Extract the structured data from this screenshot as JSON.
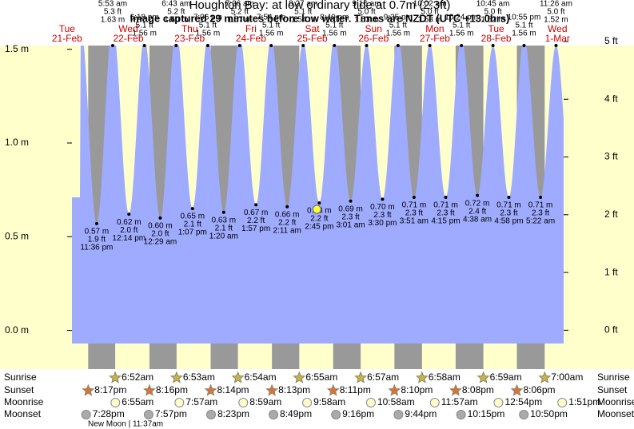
{
  "chart_data": {
    "type": "tide",
    "title": "Houghton Bay: at low  ordinary tide at 0.7m (2.3ft)",
    "subtitle": "Image captured 29 minutes before low water. Times are NZDT (UTC +13.0hrs)",
    "ylim": [
      -0.07,
      1.52
    ],
    "yticks": [
      {
        "value": 0.0,
        "label": "0.0 m"
      },
      {
        "value": 0.5,
        "label": "0.5 m"
      },
      {
        "value": 1.0,
        "label": "1.0 m"
      },
      {
        "value": 1.5,
        "label": "1.5 m"
      }
    ],
    "y2lim": [
      -0.23,
      4.93
    ],
    "y2ticks": [
      {
        "value": 0,
        "label": "0 ft"
      },
      {
        "value": 1,
        "label": "1 ft"
      },
      {
        "value": 2,
        "label": "2 ft"
      },
      {
        "value": 3,
        "label": "3 ft"
      },
      {
        "value": 4,
        "label": "4 ft"
      },
      {
        "value": 5,
        "label": "5 ft"
      }
    ],
    "colors": {
      "water": "#9eabff",
      "day": "#ffffcc",
      "night": "#999999",
      "days": "#cc0000"
    },
    "days": [
      {
        "name": "Tue",
        "date": "21-Feb"
      },
      {
        "name": "Wed",
        "date": "22-Feb"
      },
      {
        "name": "Thu",
        "date": "23-Feb"
      },
      {
        "name": "Fri",
        "date": "24-Feb"
      },
      {
        "name": "Sat",
        "date": "25-Feb"
      },
      {
        "name": "Sun",
        "date": "26-Feb"
      },
      {
        "name": "Mon",
        "date": "27-Feb"
      },
      {
        "name": "Tue",
        "date": "28-Feb"
      },
      {
        "name": "Wed",
        "date": "1-Mar"
      }
    ],
    "lows": [
      {
        "time": "11:36 pm",
        "m": 0.57,
        "m_label": "0.57 m",
        "ft": 1.9,
        "ft_label": "1.9 ft"
      },
      {
        "time": "12:14 pm",
        "m": 0.62,
        "m_label": "0.62 m",
        "ft": 2.0,
        "ft_label": "2.0 ft"
      },
      {
        "time": "12:29 am",
        "m": 0.6,
        "m_label": "0.60 m",
        "ft": 2.0,
        "ft_label": "2.0 ft"
      },
      {
        "time": "1:07 pm",
        "m": 0.65,
        "m_label": "0.65 m",
        "ft": 2.1,
        "ft_label": "2.1 ft"
      },
      {
        "time": "1:20 am",
        "m": 0.63,
        "m_label": "0.63 m",
        "ft": 2.1,
        "ft_label": "2.1 ft"
      },
      {
        "time": "1:57 pm",
        "m": 0.67,
        "m_label": "0.67 m",
        "ft": 2.2,
        "ft_label": "2.2 ft"
      },
      {
        "time": "2:11 am",
        "m": 0.66,
        "m_label": "0.66 m",
        "ft": 2.2,
        "ft_label": "2.2 ft"
      },
      {
        "time": "2:45 pm",
        "m": 0.68,
        "m_label": "0.68 m",
        "ft": 2.2,
        "ft_label": "2.2 ft"
      },
      {
        "time": "3:01 am",
        "m": 0.69,
        "m_label": "0.69 m",
        "ft": 2.3,
        "ft_label": "2.3 ft"
      },
      {
        "time": "3:30 pm",
        "m": 0.7,
        "m_label": "0.70 m",
        "ft": 2.3,
        "ft_label": "2.3 ft"
      },
      {
        "time": "3:51 am",
        "m": 0.71,
        "m_label": "0.71 m",
        "ft": 2.3,
        "ft_label": "2.3 ft"
      },
      {
        "time": "4:15 pm",
        "m": 0.71,
        "m_label": "0.71 m",
        "ft": 2.3,
        "ft_label": "2.3 ft"
      },
      {
        "time": "4:38 am",
        "m": 0.72,
        "m_label": "0.72 m",
        "ft": 2.4,
        "ft_label": "2.4 ft"
      },
      {
        "time": "4:58 pm",
        "m": 0.71,
        "m_label": "0.71 m",
        "ft": 2.3,
        "ft_label": "2.3 ft"
      },
      {
        "time": "5:22 am",
        "m": 0.71,
        "m_label": "0.71 m",
        "ft": 2.3,
        "ft_label": "2.3 ft"
      }
    ],
    "highs": [
      {
        "time": "5:53 am",
        "m": 1.63,
        "m_label": "1.63 m",
        "ft": 5.3,
        "ft_label": "5.3 ft"
      },
      {
        "time": "6:18 pm",
        "m": 1.56,
        "m_label": "1.56 m",
        "ft": 5.1,
        "ft_label": "5.1 ft"
      },
      {
        "time": "6:43 am",
        "m": 1.6,
        "m_label": "1.60 m",
        "ft": 5.2,
        "ft_label": "5.2 ft"
      },
      {
        "time": "7:06 pm",
        "m": 1.56,
        "m_label": "1.56 m",
        "ft": 5.1,
        "ft_label": "5.1 ft"
      },
      {
        "time": "7:36 am",
        "m": 1.57,
        "m_label": "1.57 m",
        "ft": 5.2,
        "ft_label": "5.2 ft"
      },
      {
        "time": "7:54 pm",
        "m": 1.56,
        "m_label": "1.56 m",
        "ft": 5.1,
        "ft_label": "5.1 ft"
      },
      {
        "time": "8:27 am",
        "m": 1.54,
        "m_label": "1.54 m",
        "ft": 5.1,
        "ft_label": "5.1 ft"
      },
      {
        "time": "8:40 pm",
        "m": 1.56,
        "m_label": "1.56 m",
        "ft": 5.1,
        "ft_label": "5.1 ft"
      },
      {
        "time": "9:16 am",
        "m": 1.53,
        "m_label": "1.53 m",
        "ft": 5.0,
        "ft_label": "5.0 ft"
      },
      {
        "time": "9:35 pm",
        "m": 1.56,
        "m_label": "1.56 m",
        "ft": 5.1,
        "ft_label": "5.1 ft"
      },
      {
        "time": "10:02 am",
        "m": 1.53,
        "m_label": "1.53 m",
        "ft": 5.0,
        "ft_label": "5.0 ft"
      },
      {
        "time": "10:24 pm",
        "m": 1.56,
        "m_label": "1.56 m",
        "ft": 5.1,
        "ft_label": "5.1 ft"
      },
      {
        "time": "10:45 am",
        "m": 1.52,
        "m_label": "1.52 m",
        "ft": 5.0,
        "ft_label": "5.0 ft"
      },
      {
        "time": "10:55 pm",
        "m": 1.56,
        "m_label": "1.56 m",
        "ft": 5.1,
        "ft_label": "5.1 ft"
      },
      {
        "time": "11:26 am",
        "m": 1.52,
        "m_label": "1.52 m",
        "ft": 5.0,
        "ft_label": "5.0 ft"
      }
    ],
    "rows": {
      "sunrise": {
        "label": "Sunrise",
        "times": [
          "6:52am",
          "6:53am",
          "6:54am",
          "6:55am",
          "6:57am",
          "6:58am",
          "6:59am",
          "7:00am"
        ]
      },
      "sunset": {
        "label": "Sunset",
        "times": [
          "8:17pm",
          "8:16pm",
          "8:14pm",
          "8:13pm",
          "8:11pm",
          "8:10pm",
          "8:08pm",
          "8:06pm"
        ]
      },
      "moonrise": {
        "label": "Moonrise",
        "times": [
          "6:55am",
          "7:57am",
          "8:59am",
          "9:58am",
          "10:58am",
          "11:57am",
          "12:54pm",
          "1:51pm"
        ]
      },
      "moonset": {
        "label": "Moonset",
        "times": [
          "7:28pm",
          "7:57pm",
          "8:23pm",
          "8:49pm",
          "9:16pm",
          "9:44pm",
          "10:15pm",
          "10:50pm"
        ]
      }
    },
    "note": "New Moon | 11:37am"
  }
}
